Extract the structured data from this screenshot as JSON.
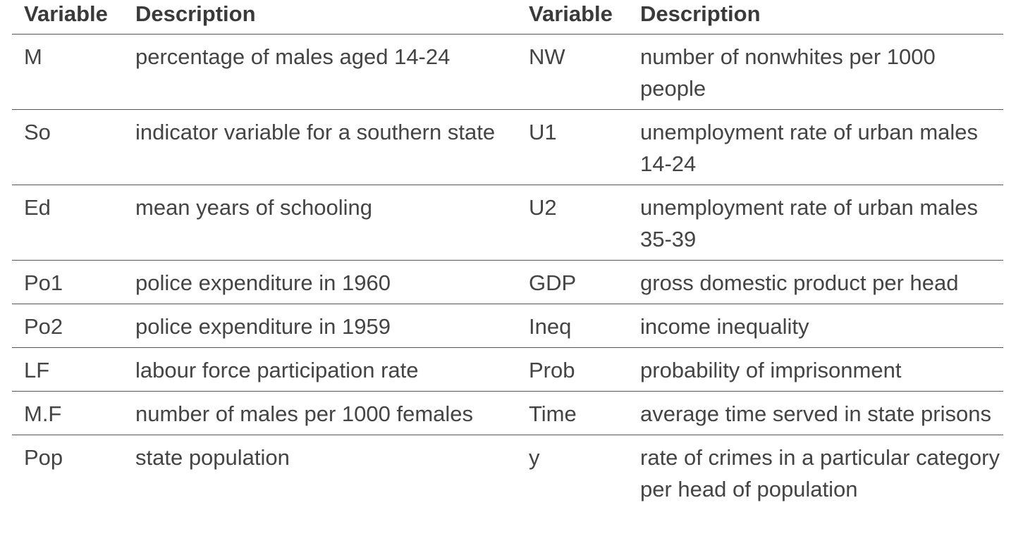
{
  "headers": [
    "Variable",
    "Description",
    "Variable",
    "Description"
  ],
  "rows": [
    [
      "M",
      "percentage of males aged 14-24",
      "NW",
      "number of nonwhites per 1000 people"
    ],
    [
      "So",
      "indicator variable for a southern state",
      "U1",
      "unemployment rate of urban males 14-24"
    ],
    [
      "Ed",
      "mean years of schooling",
      "U2",
      "unemployment rate of urban males 35-39"
    ],
    [
      "Po1",
      "police expenditure in 1960",
      "GDP",
      "gross domestic product per head"
    ],
    [
      "Po2",
      "police expenditure in 1959",
      "Ineq",
      "income inequality"
    ],
    [
      "LF",
      "labour force participation rate",
      "Prob",
      "probability of imprisonment"
    ],
    [
      "M.F",
      "number of males per 1000 females",
      "Time",
      "average time served in state prisons"
    ],
    [
      "Pop",
      "state population",
      "y",
      "rate of crimes in a particular category per head of population"
    ]
  ]
}
